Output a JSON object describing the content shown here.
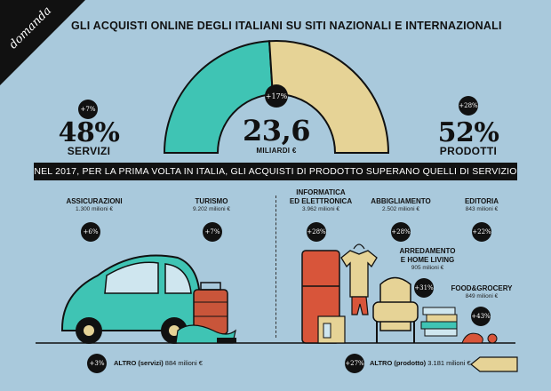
{
  "corner_label": "domanda",
  "title": "GLI ACQUISTI ONLINE DEGLI ITALIANI SU SITI NAZIONALI E INTERNAZIONALI",
  "total": {
    "badge": "+17%",
    "value": "23,6",
    "label": "MILIARDI €"
  },
  "servizi": {
    "badge": "+7%",
    "pct": "48%",
    "label": "SERVIZI",
    "share": 48
  },
  "prodotti": {
    "badge": "+28%",
    "pct": "52%",
    "label": "PRODOTTI",
    "share": 52
  },
  "banner": "NEL 2017, PER LA PRIMA VOLTA IN ITALIA, GLI ACQUISTI DI PRODOTTO SUPERANO QUELLI DI SERVIZIO",
  "categories": {
    "assicurazioni": {
      "name": "ASSICURAZIONI",
      "value": "1.300 milioni €",
      "badge": "+6%"
    },
    "turismo": {
      "name": "TURISMO",
      "value": "9.202 milioni €",
      "badge": "+7%"
    },
    "informatica": {
      "name1": "INFORMATICA",
      "name2": "ED ELETTRONICA",
      "value": "3.962 milioni €",
      "badge": "+28%"
    },
    "abbigliamento": {
      "name": "ABBIGLIAMENTO",
      "value": "2.502 milioni €",
      "badge": "+28%"
    },
    "editoria": {
      "name": "EDITORIA",
      "value": "843 milioni €",
      "badge": "+22%"
    },
    "arredamento": {
      "name1": "ARREDAMENTO",
      "name2": "E HOME LIVING",
      "value": "905 milioni €",
      "badge": "+31%"
    },
    "food": {
      "name": "FOOD&GROCERY",
      "value": "849 milioni €",
      "badge": "+43%"
    }
  },
  "altro_servizi": {
    "badge": "+3%",
    "name": "ALTRO (servizi)",
    "value": "884 milioni €"
  },
  "altro_prodotto": {
    "badge": "+27%",
    "name": "ALTRO (prodotto)",
    "value": "3.181 milioni €"
  },
  "colors": {
    "background": "#a9c9dc",
    "servizi": "#3fc4b4",
    "prodotti": "#e6d396",
    "dark": "#111111"
  }
}
